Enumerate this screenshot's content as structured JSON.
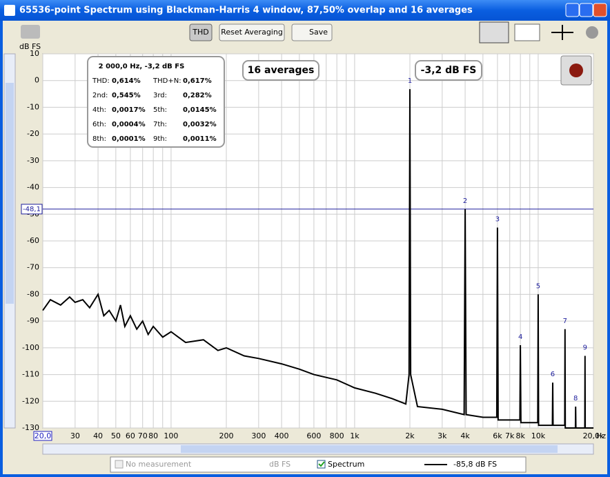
{
  "window": {
    "title": "65536-point Spectrum using Blackman-Harris 4 window, 87,50% overlap and 16 averages",
    "buttons": [
      "THD",
      "Reset Averaging",
      "Save"
    ]
  },
  "chart_data": {
    "type": "line",
    "ylabel": "dB FS",
    "xunit": "Hz",
    "log_x": true,
    "grid": true,
    "xlim": [
      20,
      20000
    ],
    "ylim": [
      -130,
      10
    ],
    "yticks": [
      10,
      0,
      -10,
      -20,
      -30,
      -40,
      -50,
      -60,
      -70,
      -80,
      -90,
      -100,
      -110,
      -120,
      -130
    ],
    "xticks": [
      {
        "value": 20,
        "label": "20,0"
      },
      30,
      40,
      50,
      60,
      70,
      80,
      100,
      200,
      300,
      400,
      600,
      800,
      {
        "value": 1000,
        "label": "1k"
      },
      {
        "value": 2000,
        "label": "2k"
      },
      {
        "value": 3000,
        "label": "3k"
      },
      {
        "value": 4000,
        "label": "4k"
      },
      {
        "value": 6000,
        "label": "6k"
      },
      {
        "value": 7000,
        "label": "7k"
      },
      {
        "value": 8000,
        "label": "8k"
      },
      {
        "value": 10000,
        "label": "10k"
      },
      {
        "value": 20000,
        "label": "20,0k"
      }
    ],
    "xminor": [
      90,
      500,
      700,
      900,
      5000,
      9000
    ],
    "cursor": {
      "value": -48.1,
      "label": "-48,1"
    },
    "averages": "16 averages",
    "peak_readout": "-3,2 dB FS",
    "stats": {
      "title": "2 000,0 Hz, -3,2 dB FS",
      "rows": [
        [
          "THD:",
          "0,614%",
          "THD+N:",
          "0,617%"
        ],
        [
          "2nd:",
          "0,545%",
          "3rd:",
          "0,282%"
        ],
        [
          "4th:",
          "0,0017%",
          "5th:",
          "0,0145%"
        ],
        [
          "6th:",
          "0,0004%",
          "7th:",
          "0,0032%"
        ],
        [
          "8th:",
          "0,0001%",
          "9th:",
          "0,0011%"
        ]
      ]
    },
    "x": [
      20,
      22,
      25,
      28,
      30,
      33,
      36,
      40,
      43,
      46,
      50,
      53,
      56,
      60,
      65,
      70,
      75,
      80,
      90,
      100,
      120,
      150,
      180,
      200,
      250,
      300,
      400,
      500,
      600,
      800,
      1000,
      1300,
      1600,
      1900,
      1980,
      2000,
      2020,
      2200,
      3000,
      3950,
      4000,
      4050,
      5000,
      5950,
      6000,
      6050,
      7000,
      7950,
      8000,
      8050,
      9000,
      9950,
      10000,
      10050,
      11950,
      12000,
      12050,
      13950,
      14000,
      14050,
      15950,
      16000,
      16050,
      17950,
      18000,
      18050,
      20000
    ],
    "series": [
      {
        "name": "Spectrum",
        "color": "#000000",
        "values": [
          -86,
          -82,
          -84,
          -81,
          -83,
          -82,
          -85,
          -80,
          -88,
          -86,
          -90,
          -84,
          -92,
          -88,
          -93,
          -90,
          -95,
          -92,
          -96,
          -94,
          -98,
          -97,
          -101,
          -100,
          -103,
          -104,
          -106,
          -108,
          -110,
          -112,
          -115,
          -117,
          -119,
          -121,
          -110,
          -3.2,
          -110,
          -122,
          -123,
          -125,
          -48.1,
          -125,
          -126,
          -126,
          -55,
          -127,
          -127,
          -127,
          -99,
          -128,
          -128,
          -128,
          -80,
          -129,
          -129,
          -113,
          -129,
          -129,
          -93,
          -130,
          -130,
          -122,
          -130,
          -130,
          -103,
          -130,
          -130
        ]
      }
    ],
    "peaks": [
      {
        "label": "1",
        "x": 2000,
        "value": -3.2
      },
      {
        "label": "2",
        "x": 4000,
        "value": -48.1
      },
      {
        "label": "3",
        "x": 6000,
        "value": -55
      },
      {
        "label": "4",
        "x": 8000,
        "value": -99
      },
      {
        "label": "5",
        "x": 10000,
        "value": -80
      },
      {
        "label": "6",
        "x": 12000,
        "value": -113
      },
      {
        "label": "7",
        "x": 14000,
        "value": -93
      },
      {
        "label": "8",
        "x": 16000,
        "value": -122
      },
      {
        "label": "9",
        "x": 18000,
        "value": -103
      }
    ]
  },
  "legend_bar": {
    "no_measurement": "No measurement",
    "unit": "dB FS",
    "readout": "-85,8 dB FS"
  }
}
